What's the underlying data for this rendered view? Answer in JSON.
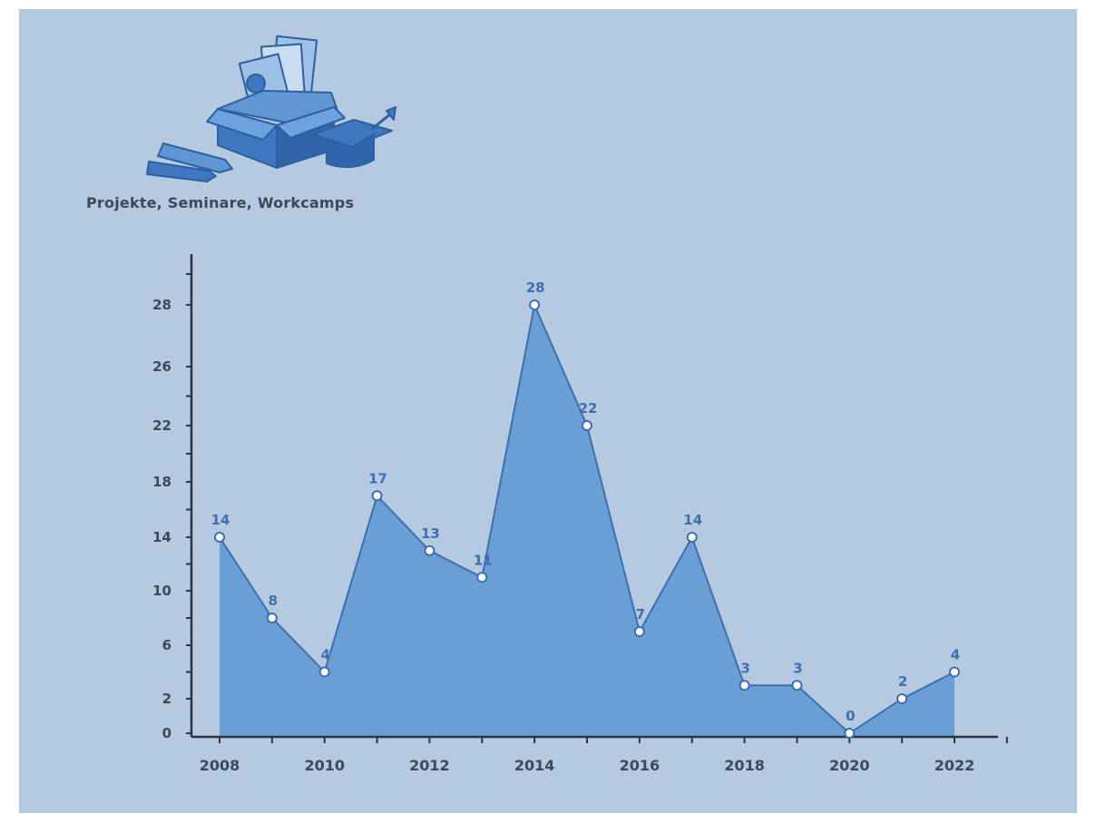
{
  "title": "Projekte, Seminare, Workcamps",
  "colors": {
    "background": "#b5cae0",
    "area": "#6a9fd6",
    "line": "#3d6fae",
    "axis": "#2b3440",
    "text": "#3a4a5a",
    "label": "#3d6fae",
    "icon": "#3f78c0"
  },
  "icon": "box-with-folders-pencils-graduation-cap",
  "chart_data": {
    "type": "area",
    "title": "Projekte, Seminare, Workcamps",
    "xlabel": "",
    "ylabel": "",
    "x": [
      2008,
      2009,
      2010,
      2011,
      2012,
      2013,
      2014,
      2015,
      2016,
      2017,
      2018,
      2019,
      2020,
      2021,
      2022
    ],
    "values": [
      14,
      8,
      4,
      17,
      13,
      11,
      28,
      22,
      7,
      14,
      3,
      3,
      0,
      2,
      4
    ],
    "data_labels": [
      "14",
      "8",
      "4",
      "17",
      "13",
      "11",
      "28",
      "22",
      "7",
      "14",
      "3",
      "3",
      "0",
      "2",
      "4"
    ],
    "x_ticks": [
      "2008",
      "2010",
      "2012",
      "2014",
      "2016",
      "2018",
      "2020",
      "2022"
    ],
    "y_ticks": [
      "0",
      "2",
      "6",
      "10",
      "14",
      "18",
      "22",
      "26",
      "28"
    ],
    "y_tick_values": [
      0,
      2,
      6,
      10,
      14,
      18,
      22,
      26,
      28
    ],
    "xlim": [
      2007.6,
      2023.4
    ],
    "ylim": [
      0,
      32
    ],
    "grid": false,
    "legend": "none"
  }
}
